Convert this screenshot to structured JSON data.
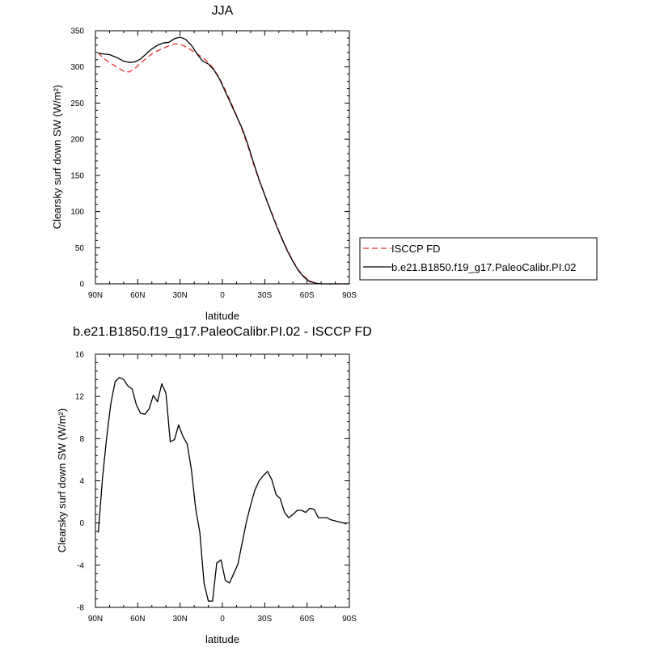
{
  "chart_data": [
    {
      "type": "line",
      "title": "JJA",
      "xlabel": "latitude",
      "ylabel": "Clearsky surf down SW (W/m²)",
      "xlim": [
        90,
        -90
      ],
      "ylim": [
        0,
        350
      ],
      "x_ticks": [
        90,
        60,
        30,
        0,
        -30,
        -60,
        -90
      ],
      "x_tick_labels": [
        "90N",
        "60N",
        "30N",
        "0",
        "30S",
        "60S",
        "90S"
      ],
      "y_ticks": [
        0,
        50,
        100,
        150,
        200,
        250,
        300,
        350
      ],
      "y_tick_labels": [
        "0",
        "50",
        "100",
        "150",
        "200",
        "250",
        "300",
        "350"
      ],
      "legend_position": "right",
      "series": [
        {
          "name": "ISCCP FD",
          "color": "#e8302f",
          "dash": "dashed",
          "x": [
            88,
            85,
            80,
            75,
            70,
            66,
            62,
            58,
            54,
            50,
            46,
            42,
            38,
            34,
            30,
            26,
            22,
            18,
            14,
            10,
            6,
            2,
            -2,
            -6,
            -10,
            -14,
            -18,
            -22,
            -26,
            -30,
            -34,
            -38,
            -42,
            -46,
            -50,
            -54,
            -58,
            -62,
            -66,
            -70,
            -74,
            -78,
            -82,
            -86,
            -90
          ],
          "y": [
            320,
            313,
            306,
            300,
            294,
            293,
            298,
            305,
            312,
            318,
            322,
            326,
            329,
            332,
            331,
            328,
            323,
            318,
            313,
            306,
            297,
            284,
            268,
            251,
            233,
            213,
            191,
            166,
            143,
            123,
            103,
            83,
            64,
            47,
            32,
            19,
            10,
            4,
            1,
            0,
            0,
            0,
            0,
            0,
            0
          ]
        },
        {
          "name": "b.e21.B1850.f19_g17.PaleoCalibr.PI.02",
          "color": "#000000",
          "dash": "solid",
          "x": [
            88,
            85,
            80,
            75,
            70,
            66,
            62,
            58,
            54,
            50,
            46,
            42,
            38,
            34,
            30,
            26,
            22,
            18,
            14,
            10,
            6,
            2,
            -2,
            -6,
            -10,
            -14,
            -18,
            -22,
            -26,
            -30,
            -34,
            -38,
            -42,
            -46,
            -50,
            -54,
            -58,
            -62,
            -66,
            -70,
            -74,
            -78,
            -82,
            -86,
            -90
          ],
          "y": [
            319,
            318,
            317,
            313,
            308,
            306,
            307,
            311,
            318,
            325,
            330,
            333,
            334,
            339,
            341,
            338,
            330,
            318,
            308,
            304,
            296,
            283,
            266,
            249,
            232,
            215,
            193,
            168,
            144,
            123,
            102,
            82,
            63,
            46,
            31,
            18,
            9,
            3,
            1,
            0,
            0,
            0,
            0,
            0,
            0
          ]
        }
      ]
    },
    {
      "type": "line",
      "title": "b.e21.B1850.f19_g17.PaleoCalibr.PI.02 - ISCCP FD",
      "xlabel": "latitude",
      "ylabel": "Clearsky surf down SW (W/m²)",
      "xlim": [
        90,
        -90
      ],
      "ylim": [
        -8,
        16
      ],
      "x_ticks": [
        90,
        60,
        30,
        0,
        -30,
        -60,
        -90
      ],
      "x_tick_labels": [
        "90N",
        "60N",
        "30N",
        "0",
        "30S",
        "60S",
        "90S"
      ],
      "y_ticks": [
        -8,
        -4,
        0,
        4,
        8,
        12,
        16
      ],
      "y_tick_labels": [
        "-8",
        "-4",
        "0",
        "4",
        "8",
        "12",
        "16"
      ],
      "series": [
        {
          "color": "#000000",
          "dash": "solid",
          "x": [
            88,
            85,
            82,
            79,
            76,
            73,
            70,
            67,
            64,
            61,
            58,
            55,
            52,
            49,
            46,
            43,
            40,
            37,
            34,
            31,
            28,
            25,
            22,
            19,
            16,
            13,
            10,
            7,
            4,
            1,
            -2,
            -5,
            -8,
            -11,
            -14,
            -17,
            -20,
            -23,
            -26,
            -29,
            -32,
            -35,
            -38,
            -41,
            -44,
            -47,
            -50,
            -53,
            -56,
            -59,
            -62,
            -65,
            -68,
            -71,
            -74,
            -77,
            -80,
            -83,
            -86,
            -88
          ],
          "y": [
            -0.9,
            4.2,
            8.2,
            11.4,
            13.4,
            13.8,
            13.6,
            13.0,
            12.7,
            11.2,
            10.4,
            10.3,
            10.8,
            12.1,
            11.5,
            13.2,
            12.3,
            7.7,
            7.9,
            9.3,
            8.2,
            7.5,
            5.1,
            1.4,
            -0.9,
            -5.7,
            -7.4,
            -7.4,
            -3.8,
            -3.5,
            -5.4,
            -5.7,
            -4.8,
            -3.9,
            -1.9,
            0.1,
            1.7,
            3.1,
            4.0,
            4.5,
            4.9,
            4.1,
            2.7,
            2.3,
            1.0,
            0.5,
            0.8,
            1.2,
            1.2,
            1.0,
            1.4,
            1.3,
            0.5,
            0.5,
            0.5,
            0.3,
            0.2,
            0.1,
            0.0,
            -0.1
          ]
        }
      ]
    }
  ]
}
